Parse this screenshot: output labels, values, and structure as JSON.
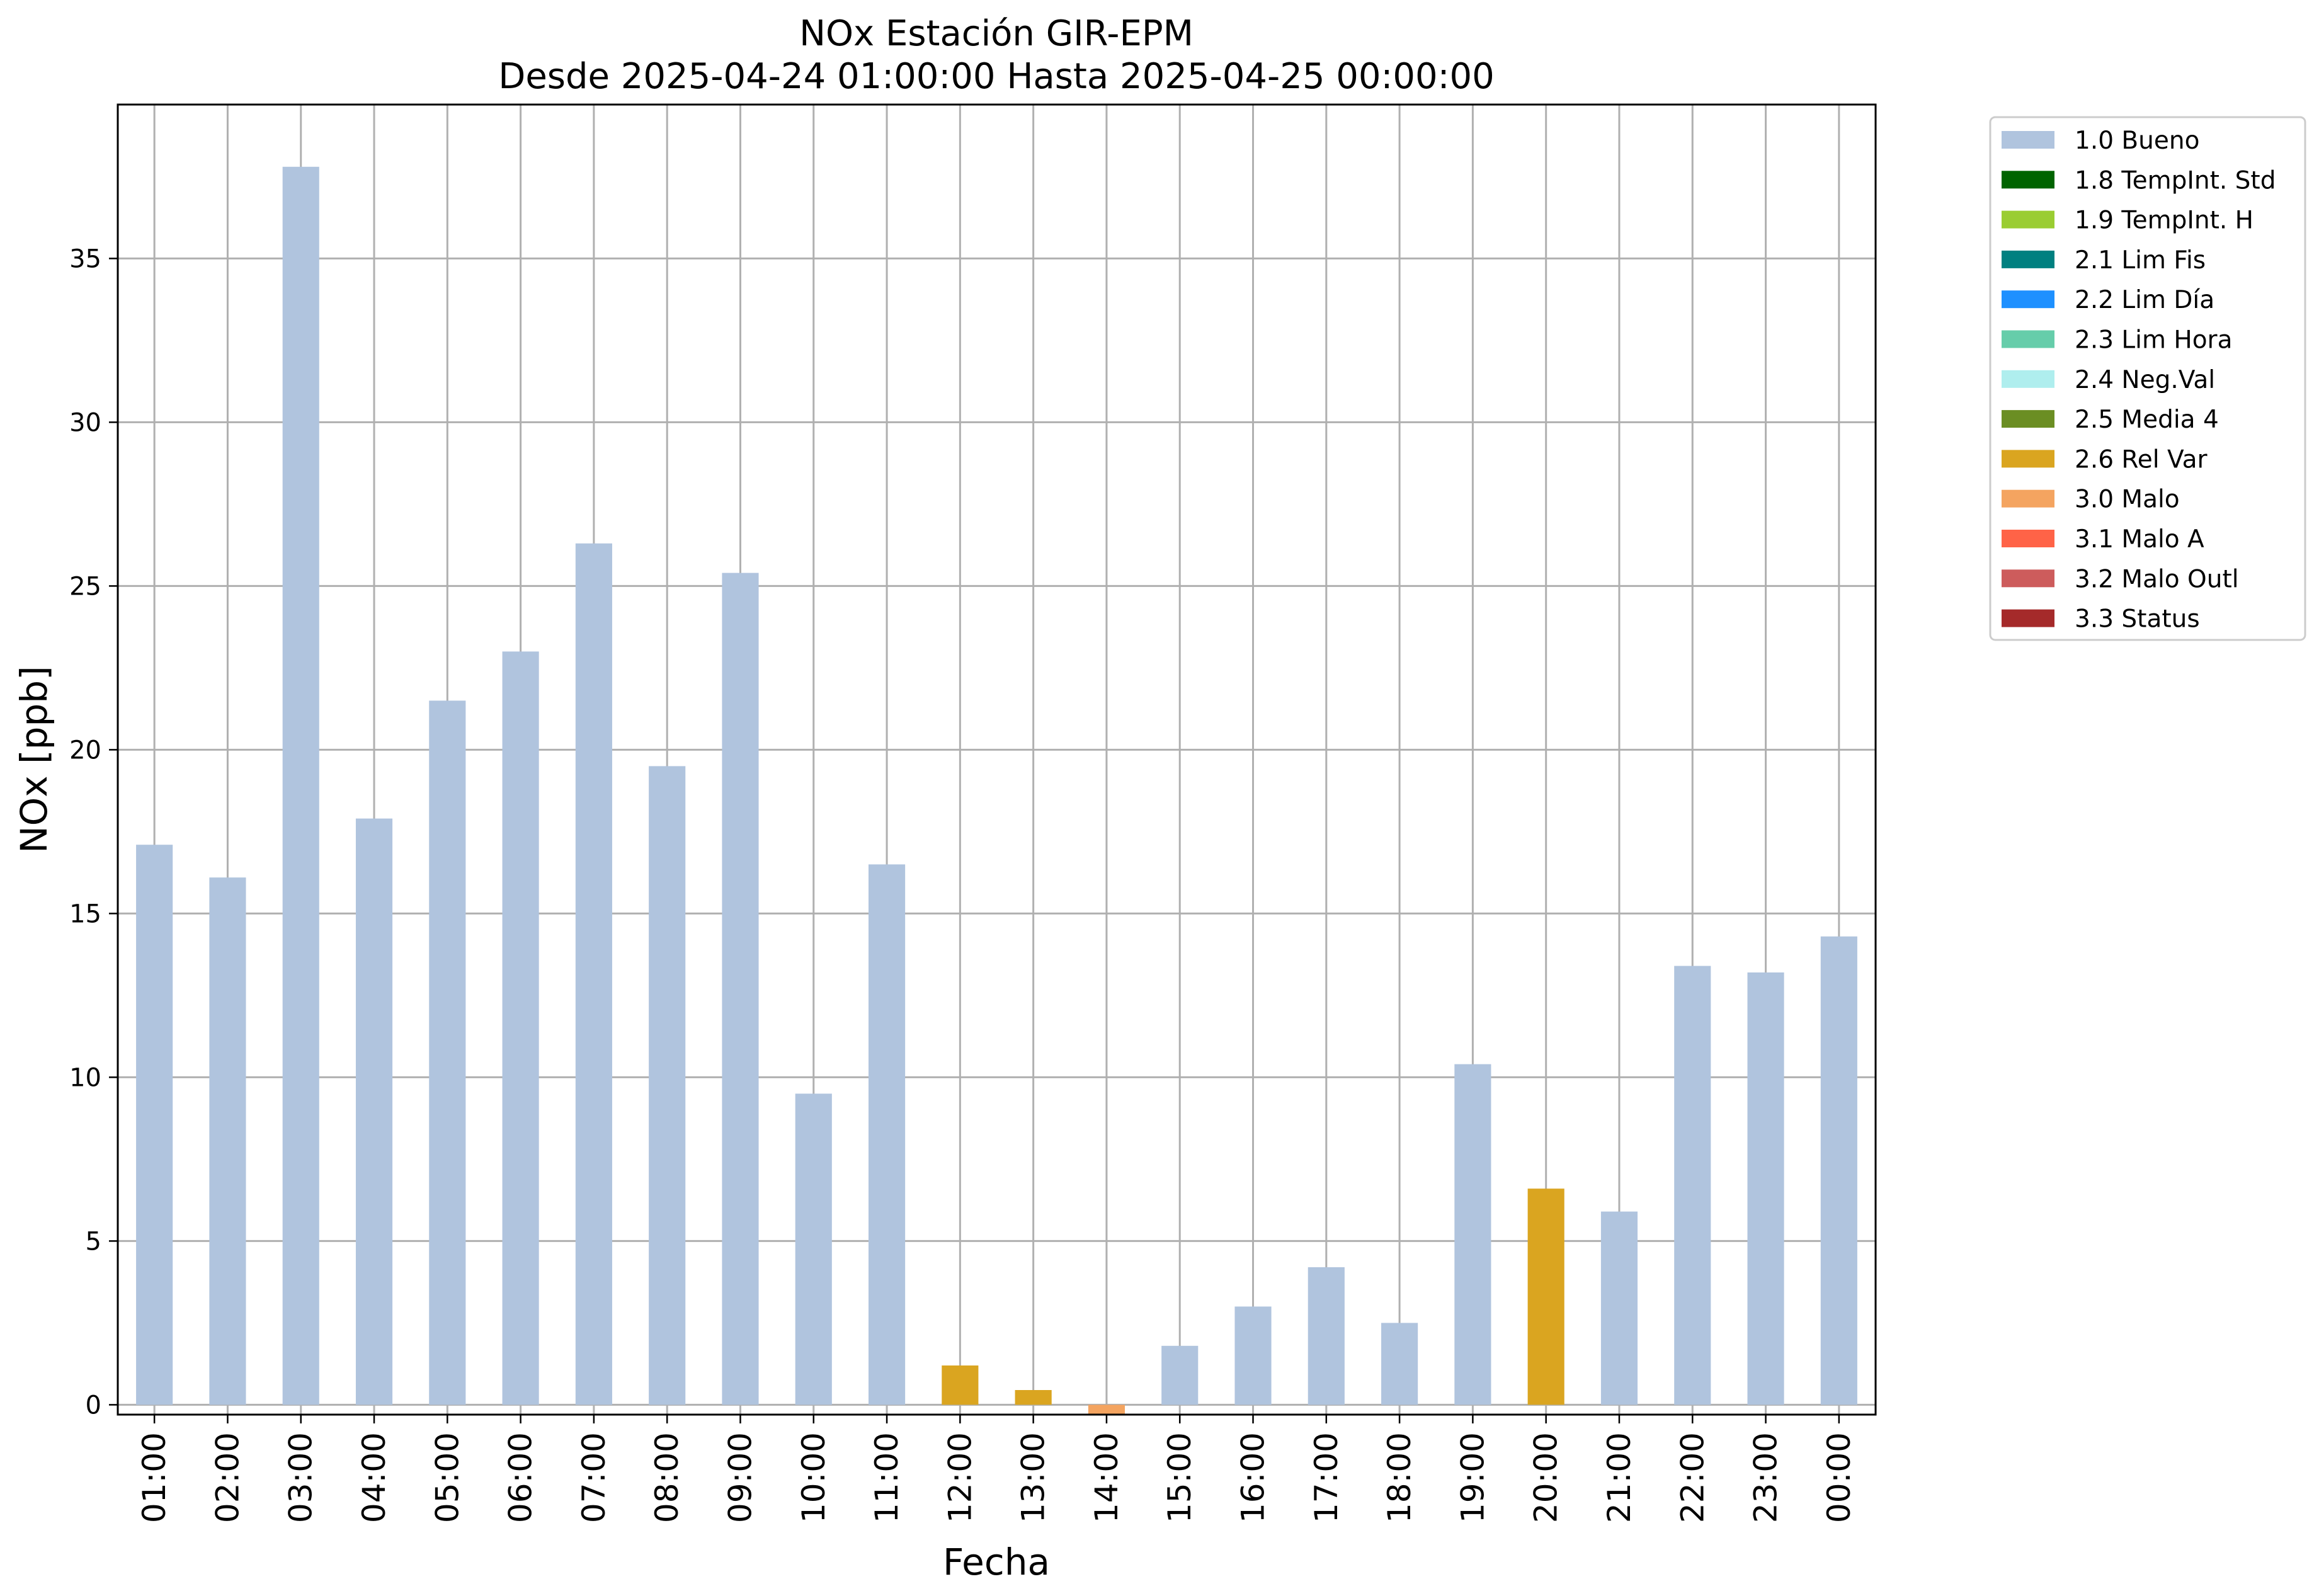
{
  "chart_data": {
    "type": "bar",
    "title": "NOx Estación GIR-EPM",
    "subtitle": "Desde 2025-04-24 01:00:00 Hasta 2025-04-25 00:00:00",
    "xlabel": "Fecha",
    "ylabel": "NOx [ppb]",
    "ylim": [
      -0.3,
      39.7
    ],
    "yticks": [
      0,
      5,
      10,
      15,
      20,
      25,
      30,
      35
    ],
    "grid": true,
    "legend_position": "outside-top-right",
    "categories": [
      "01:00",
      "02:00",
      "03:00",
      "04:00",
      "05:00",
      "06:00",
      "07:00",
      "08:00",
      "09:00",
      "10:00",
      "11:00",
      "12:00",
      "13:00",
      "14:00",
      "15:00",
      "16:00",
      "17:00",
      "18:00",
      "19:00",
      "20:00",
      "21:00",
      "22:00",
      "23:00",
      "00:00"
    ],
    "values": [
      17.1,
      16.1,
      37.8,
      17.9,
      21.5,
      23.0,
      26.3,
      19.5,
      25.4,
      9.5,
      16.5,
      1.2,
      0.45,
      -0.3,
      1.8,
      3.0,
      4.2,
      2.5,
      10.4,
      6.6,
      5.9,
      13.4,
      13.2,
      14.3
    ],
    "flags": [
      "1.0 Bueno",
      "1.0 Bueno",
      "1.0 Bueno",
      "1.0 Bueno",
      "1.0 Bueno",
      "1.0 Bueno",
      "1.0 Bueno",
      "1.0 Bueno",
      "1.0 Bueno",
      "1.0 Bueno",
      "1.0 Bueno",
      "2.6 Rel Var",
      "2.6 Rel Var",
      "3.0 Malo",
      "1.0 Bueno",
      "1.0 Bueno",
      "1.0 Bueno",
      "1.0 Bueno",
      "1.0 Bueno",
      "2.6 Rel Var",
      "1.0 Bueno",
      "1.0 Bueno",
      "1.0 Bueno",
      "1.0 Bueno"
    ],
    "legend": [
      {
        "label": "1.0 Bueno",
        "color": "#b0c4de"
      },
      {
        "label": "1.8 TempInt. Std",
        "color": "#006400"
      },
      {
        "label": "1.9 TempInt. H",
        "color": "#9acd32"
      },
      {
        "label": "2.1 Lim Fis",
        "color": "#008080"
      },
      {
        "label": "2.2 Lim Día",
        "color": "#1e90ff"
      },
      {
        "label": "2.3 Lim Hora",
        "color": "#66cdaa"
      },
      {
        "label": "2.4 Neg.Val",
        "color": "#afeeee"
      },
      {
        "label": "2.5 Media 4",
        "color": "#6b8e23"
      },
      {
        "label": "2.6 Rel Var",
        "color": "#daa520"
      },
      {
        "label": "3.0 Malo",
        "color": "#f4a460"
      },
      {
        "label": "3.1 Malo A",
        "color": "#ff6347"
      },
      {
        "label": "3.2 Malo Outl",
        "color": "#cd5c5c"
      },
      {
        "label": "3.3 Status",
        "color": "#a52a2a"
      }
    ]
  }
}
